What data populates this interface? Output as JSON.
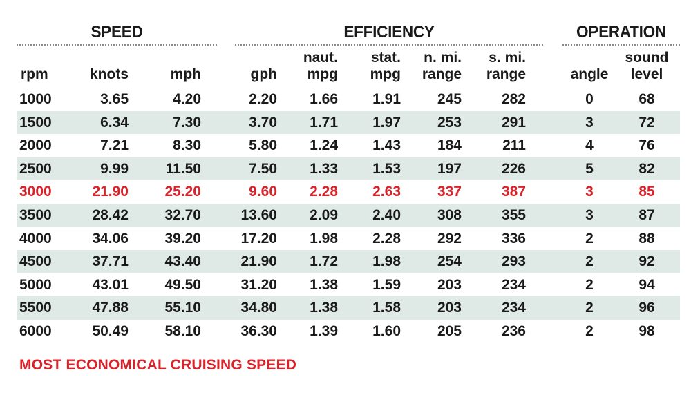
{
  "groups": [
    {
      "label": "SPEED"
    },
    {
      "label": "EFFICIENCY"
    },
    {
      "label": "OPERATION"
    }
  ],
  "columns": [
    {
      "line1": "",
      "line2": "rpm"
    },
    {
      "line1": "",
      "line2": "knots"
    },
    {
      "line1": "",
      "line2": "mph"
    },
    {
      "line1": "",
      "line2": "gph"
    },
    {
      "line1": "naut.",
      "line2": "mpg"
    },
    {
      "line1": "stat.",
      "line2": "mpg"
    },
    {
      "line1": "n. mi.",
      "line2": "range"
    },
    {
      "line1": "s. mi.",
      "line2": "range"
    },
    {
      "line1": "",
      "line2": "angle"
    },
    {
      "line1": "sound",
      "line2": "level"
    }
  ],
  "chart_data": {
    "type": "table",
    "column_headers": [
      "rpm",
      "knots",
      "mph",
      "gph",
      "naut. mpg",
      "stat. mpg",
      "n. mi. range",
      "s. mi. range",
      "angle",
      "sound level"
    ],
    "rows": [
      {
        "values": [
          "1000",
          "3.65",
          "4.20",
          "2.20",
          "1.66",
          "1.91",
          "245",
          "282",
          "0",
          "68"
        ],
        "shaded": false,
        "highlight": false
      },
      {
        "values": [
          "1500",
          "6.34",
          "7.30",
          "3.70",
          "1.71",
          "1.97",
          "253",
          "291",
          "3",
          "72"
        ],
        "shaded": true,
        "highlight": false
      },
      {
        "values": [
          "2000",
          "7.21",
          "8.30",
          "5.80",
          "1.24",
          "1.43",
          "184",
          "211",
          "4",
          "76"
        ],
        "shaded": false,
        "highlight": false
      },
      {
        "values": [
          "2500",
          "9.99",
          "11.50",
          "7.50",
          "1.33",
          "1.53",
          "197",
          "226",
          "5",
          "82"
        ],
        "shaded": true,
        "highlight": false
      },
      {
        "values": [
          "3000",
          "21.90",
          "25.20",
          "9.60",
          "2.28",
          "2.63",
          "337",
          "387",
          "3",
          "85"
        ],
        "shaded": false,
        "highlight": true
      },
      {
        "values": [
          "3500",
          "28.42",
          "32.70",
          "13.60",
          "2.09",
          "2.40",
          "308",
          "355",
          "3",
          "87"
        ],
        "shaded": true,
        "highlight": false
      },
      {
        "values": [
          "4000",
          "34.06",
          "39.20",
          "17.20",
          "1.98",
          "2.28",
          "292",
          "336",
          "2",
          "88"
        ],
        "shaded": false,
        "highlight": false
      },
      {
        "values": [
          "4500",
          "37.71",
          "43.40",
          "21.90",
          "1.72",
          "1.98",
          "254",
          "293",
          "2",
          "92"
        ],
        "shaded": true,
        "highlight": false
      },
      {
        "values": [
          "5000",
          "43.01",
          "49.50",
          "31.20",
          "1.38",
          "1.59",
          "203",
          "234",
          "2",
          "94"
        ],
        "shaded": false,
        "highlight": false
      },
      {
        "values": [
          "5500",
          "47.88",
          "55.10",
          "34.80",
          "1.38",
          "1.58",
          "203",
          "234",
          "2",
          "96"
        ],
        "shaded": true,
        "highlight": false
      },
      {
        "values": [
          "6000",
          "50.49",
          "58.10",
          "36.30",
          "1.39",
          "1.60",
          "205",
          "236",
          "2",
          "98"
        ],
        "shaded": false,
        "highlight": false
      }
    ],
    "highlight_color": "#d8232a",
    "shade_color": "#dfeae7"
  },
  "footnote": "MOST ECONOMICAL CRUISING SPEED"
}
